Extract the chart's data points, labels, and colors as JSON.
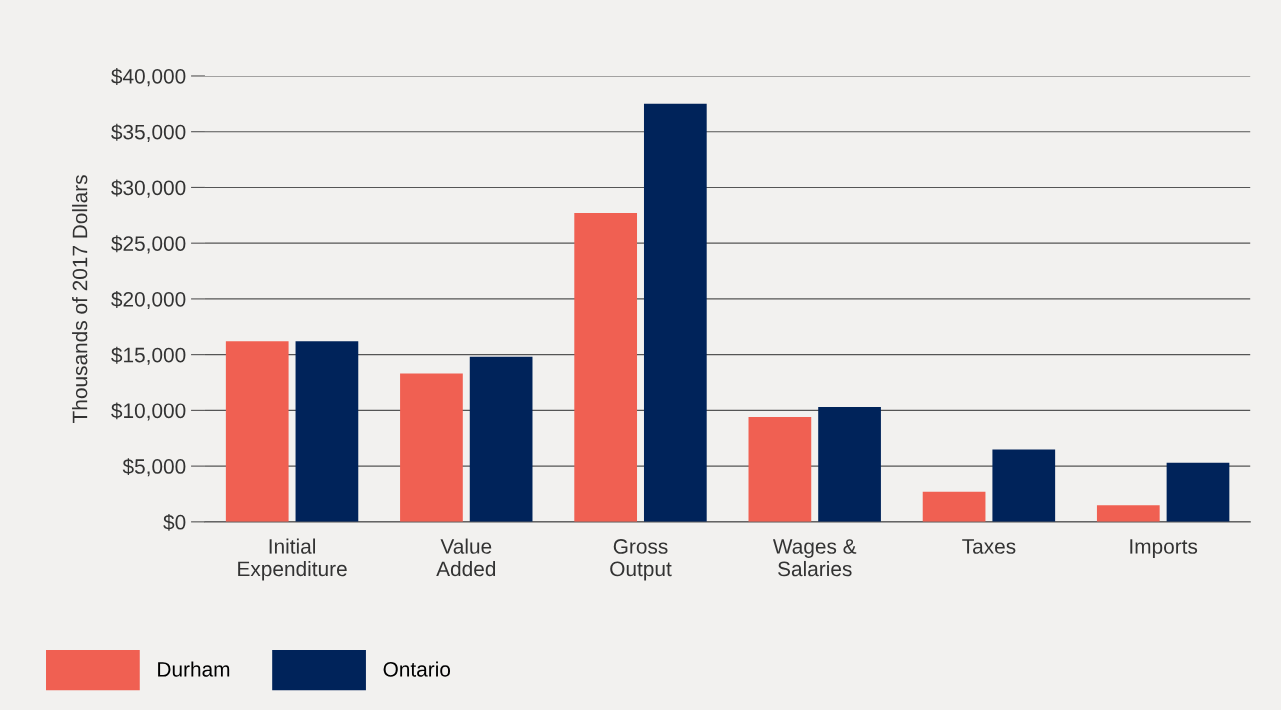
{
  "chart_data": {
    "type": "bar",
    "ylabel": "Thousands of 2017 Dollars",
    "categories": [
      "Initial\nExpenditure",
      "Value\nAdded",
      "Gross\nOutput",
      "Wages &\nSalaries",
      "Taxes",
      "Imports"
    ],
    "series": [
      {
        "name": "Durham",
        "color": "#f06052",
        "values": [
          16200,
          13300,
          27700,
          9400,
          2700,
          1500
        ]
      },
      {
        "name": "Ontario",
        "color": "#00235a",
        "values": [
          16200,
          14800,
          37500,
          10300,
          6500,
          5300
        ]
      }
    ],
    "ylim": [
      0,
      40000
    ],
    "yticks": [
      {
        "value": 0,
        "label": "$0"
      },
      {
        "value": 5000,
        "label": "$5,000"
      },
      {
        "value": 10000,
        "label": "$10,000"
      },
      {
        "value": 15000,
        "label": "$15,000"
      },
      {
        "value": 20000,
        "label": "$20,000"
      },
      {
        "value": 25000,
        "label": "$25,000"
      },
      {
        "value": 30000,
        "label": "$30,000"
      },
      {
        "value": 35000,
        "label": "$35,000"
      },
      {
        "value": 40000,
        "label": "$40,000"
      }
    ],
    "grid": "y",
    "legend": "bottom left"
  }
}
